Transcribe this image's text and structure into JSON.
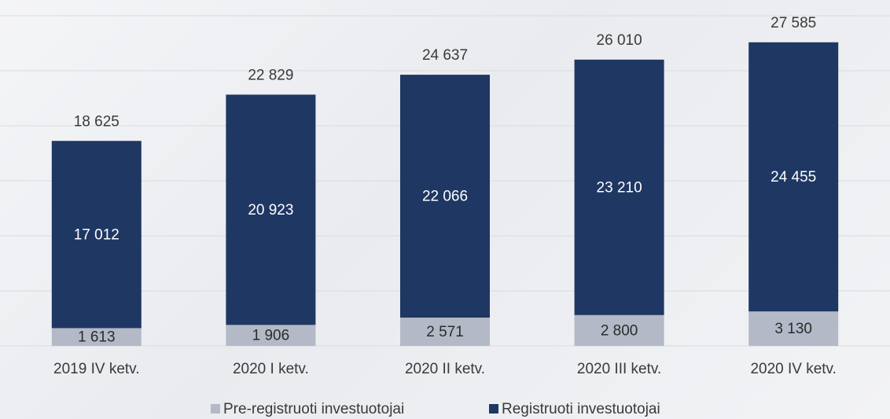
{
  "chart_data": {
    "type": "stacked_bar",
    "categories": [
      "2019 IV ketv.",
      "2020 I ketv.",
      "2020 II ketv.",
      "2020 III ketv.",
      "2020 IV ketv."
    ],
    "series": [
      {
        "name": "Pre-registruoti investuotojai",
        "color": "#b3b9c6",
        "values": [
          1613,
          1906,
          2571,
          2800,
          3130
        ],
        "value_labels": [
          "1 613",
          "1 906",
          "2 571",
          "2 800",
          "3 130"
        ]
      },
      {
        "name": "Registruoti investuotojai",
        "color": "#1f3763",
        "values": [
          17012,
          20923,
          22066,
          23210,
          24455
        ],
        "value_labels": [
          "17 012",
          "20 923",
          "22 066",
          "23 210",
          "24 455"
        ]
      }
    ],
    "total_labels": [
      "18 625",
      "22 829",
      "24 637",
      "26 010",
      "27 585"
    ],
    "ylim": [
      0,
      30000
    ],
    "yticks": [
      0,
      5000,
      10000,
      15000,
      20000,
      25000,
      30000
    ],
    "grid": true,
    "legend": "bottom"
  }
}
